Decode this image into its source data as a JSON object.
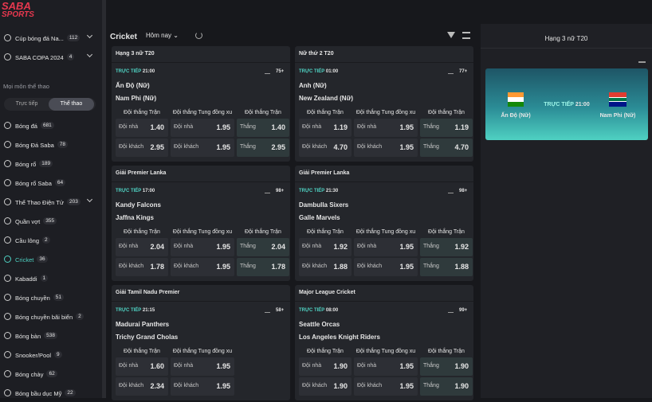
{
  "logo": {
    "line1": "SABA",
    "line2": "SPORTS"
  },
  "featured": [
    {
      "name": "Cúp bóng đá Na...",
      "count": 112
    },
    {
      "name": "SABA COPA 2024",
      "count": 4
    }
  ],
  "section_label": "Mọi môn thể thao",
  "tabs": [
    "Trực tiếp",
    "Thể thao"
  ],
  "sports": [
    {
      "name": "Bóng đá",
      "count": 681
    },
    {
      "name": "Bóng Đá Saba",
      "count": 78
    },
    {
      "name": "Bóng rổ",
      "count": 189
    },
    {
      "name": "Bóng rổ Saba",
      "count": 64
    },
    {
      "name": "Thể Thao Điện Tử",
      "count": 203
    },
    {
      "name": "Quần vợt",
      "count": 355
    },
    {
      "name": "Cầu lông",
      "count": 2
    },
    {
      "name": "Cricket",
      "count": 36
    },
    {
      "name": "Kabaddi",
      "count": 1
    },
    {
      "name": "Bóng chuyền",
      "count": 51
    },
    {
      "name": "Bóng chuyền bãi biển",
      "count": 2
    },
    {
      "name": "Bóng bàn",
      "count": 538
    },
    {
      "name": "Snooker/Pool",
      "count": 9
    },
    {
      "name": "Bóng chày",
      "count": 62
    },
    {
      "name": "Bóng bầu dục Mỹ",
      "count": 22
    }
  ],
  "toolbar": {
    "sport": "Cricket",
    "date": "Hôm nay"
  },
  "matches": [
    {
      "league": "Hạng 3 nữ T20",
      "live": "TRỰC TIẾP",
      "time": "21:00",
      "markets": "75+",
      "home": "Ấn Độ (Nữ)",
      "away": "Nam Phi (Nữ)",
      "headers": [
        "Đội thắng Trận",
        "Đội thắng Tung đồng xu",
        "Đội thắng Trận"
      ],
      "rows": [
        [
          {
            "label": "Đội nhà",
            "odds": "1.40"
          },
          {
            "label": "Đội nhà",
            "odds": "1.95"
          },
          {
            "label": "Thắng",
            "odds": "1.40"
          }
        ],
        [
          {
            "label": "Đội khách",
            "odds": "2.95"
          },
          {
            "label": "Đội khách",
            "odds": "1.95"
          },
          {
            "label": "Thắng",
            "odds": "2.95"
          }
        ]
      ]
    },
    {
      "league": "Nữ thứ 2 T20",
      "live": "TRỰC TIẾP",
      "time": "01:00",
      "markets": "77+",
      "home": "Anh (Nữ)",
      "away": "New Zealand (Nữ)",
      "headers": [
        "Đội thắng Trận",
        "Đội thắng Tung đồng xu",
        "Đội thắng Trận"
      ],
      "rows": [
        [
          {
            "label": "Đội nhà",
            "odds": "1.19"
          },
          {
            "label": "Đội nhà",
            "odds": "1.95"
          },
          {
            "label": "Thắng",
            "odds": "1.19"
          }
        ],
        [
          {
            "label": "Đội khách",
            "odds": "4.70"
          },
          {
            "label": "Đội khách",
            "odds": "1.95"
          },
          {
            "label": "Thắng",
            "odds": "4.70"
          }
        ]
      ]
    },
    {
      "league": "Giải Premier Lanka",
      "live": "TRỰC TIẾP",
      "time": "17:00",
      "markets": "98+",
      "home": "Kandy Falcons",
      "away": "Jaffna Kings",
      "headers": [
        "Đội thắng Trận",
        "Đội thắng Tung đồng xu",
        "Đội thắng Trận"
      ],
      "rows": [
        [
          {
            "label": "Đội nhà",
            "odds": "2.04"
          },
          {
            "label": "Đội nhà",
            "odds": "1.95"
          },
          {
            "label": "Thắng",
            "odds": "2.04"
          }
        ],
        [
          {
            "label": "Đội khách",
            "odds": "1.78"
          },
          {
            "label": "Đội khách",
            "odds": "1.95"
          },
          {
            "label": "Thắng",
            "odds": "1.78"
          }
        ]
      ]
    },
    {
      "league": "Giải Premier Lanka",
      "live": "TRỰC TIẾP",
      "time": "21:30",
      "markets": "98+",
      "home": "Dambulla Sixers",
      "away": "Galle Marvels",
      "headers": [
        "Đội thắng Trận",
        "Đội thắng Tung đồng xu",
        "Đội thắng Trận"
      ],
      "rows": [
        [
          {
            "label": "Đội nhà",
            "odds": "1.92"
          },
          {
            "label": "Đội nhà",
            "odds": "1.95"
          },
          {
            "label": "Thắng",
            "odds": "1.92"
          }
        ],
        [
          {
            "label": "Đội khách",
            "odds": "1.88"
          },
          {
            "label": "Đội khách",
            "odds": "1.95"
          },
          {
            "label": "Thắng",
            "odds": "1.88"
          }
        ]
      ]
    },
    {
      "league": "Giải Tamil Nadu Premier",
      "live": "TRỰC TIẾP",
      "time": "21:15",
      "markets": "58+",
      "home": "Madurai Panthers",
      "away": "Trichy Grand Cholas",
      "headers": [
        "Đội thắng Trận",
        "Đội thắng Tung đồng xu"
      ],
      "rows": [
        [
          {
            "label": "Đội nhà",
            "odds": "1.60"
          },
          {
            "label": "Đội nhà",
            "odds": "1.95"
          }
        ],
        [
          {
            "label": "Đội khách",
            "odds": "2.34"
          },
          {
            "label": "Đội khách",
            "odds": "1.95"
          }
        ]
      ]
    },
    {
      "league": "Major League Cricket",
      "live": "TRỰC TIẾP",
      "time": "08:00",
      "markets": "99+",
      "home": "Seattle Orcas",
      "away": "Los Angeles Knight Riders",
      "headers": [
        "Đội thắng Trận",
        "Đội thắng Tung đồng xu",
        "Đội thắng Trận"
      ],
      "rows": [
        [
          {
            "label": "Đội nhà",
            "odds": "1.90"
          },
          {
            "label": "Đội nhà",
            "odds": "1.95"
          },
          {
            "label": "Thắng",
            "odds": "1.90"
          }
        ],
        [
          {
            "label": "Đội khách",
            "odds": "1.90"
          },
          {
            "label": "Đội khách",
            "odds": "1.95"
          },
          {
            "label": "Thắng",
            "odds": "1.90"
          }
        ]
      ]
    }
  ],
  "detail": {
    "league": "Hạng 3 nữ T20",
    "live": "TRỰC TIẾP",
    "time": "21:00",
    "home": "Ấn Độ (Nữ)",
    "away": "Nam Phi (Nữ)"
  }
}
